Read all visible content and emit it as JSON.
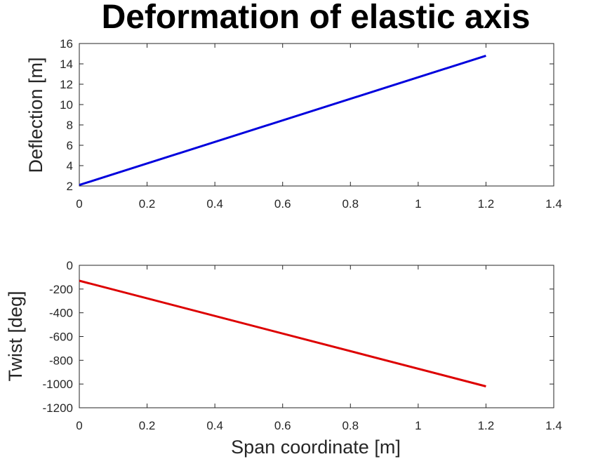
{
  "chart_data": [
    {
      "type": "line",
      "title": "Deformation of elastic axis",
      "xlabel": "",
      "ylabel": "Deflection [m]",
      "xlim": [
        0,
        1.4
      ],
      "ylim": [
        2,
        16
      ],
      "xticks": [
        "0",
        "0.2",
        "0.4",
        "0.6",
        "0.8",
        "1",
        "1.2",
        "1.4"
      ],
      "yticks": [
        "2",
        "4",
        "6",
        "8",
        "10",
        "12",
        "14",
        "16"
      ],
      "grid": false,
      "series": [
        {
          "color": "#0000dd",
          "x": [
            0,
            1.2
          ],
          "y": [
            2.1,
            14.8
          ]
        }
      ]
    },
    {
      "type": "line",
      "title": "",
      "xlabel": "Span coordinate [m]",
      "ylabel": "Twist [deg]",
      "xlim": [
        0,
        1.4
      ],
      "ylim": [
        -1200,
        0
      ],
      "xticks": [
        "0",
        "0.2",
        "0.4",
        "0.6",
        "0.8",
        "1",
        "1.2",
        "1.4"
      ],
      "yticks": [
        "-1200",
        "-1000",
        "-800",
        "-600",
        "-400",
        "-200",
        "0"
      ],
      "grid": false,
      "series": [
        {
          "color": "#dd0000",
          "x": [
            0,
            1.2
          ],
          "y": [
            -130,
            -1020
          ]
        }
      ]
    }
  ]
}
